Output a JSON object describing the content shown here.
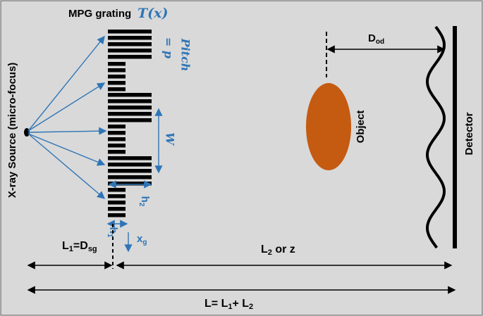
{
  "labels": {
    "grating_title": "MPG grating",
    "transmission": "T(x)",
    "pitch": "Pitch",
    "pitch_eq": "= p",
    "width": "W",
    "h2": {
      "main": "h",
      "sub": "2"
    },
    "h1": {
      "main": "h",
      "sub": "1"
    },
    "xg": {
      "main": "x",
      "sub": "g"
    },
    "source": "X-ray Source (micro-focus)",
    "object": "Object",
    "detector": "Detector",
    "dod": {
      "main": "D",
      "sub": "od"
    },
    "l1": {
      "main": "L",
      "sub": "1",
      "eq": "=D",
      "sub2": "sg"
    },
    "l2": {
      "main": "L",
      "sub": "2",
      "rest": " or z"
    },
    "total": {
      "main": "L= L",
      "sub": "1",
      "plus": "+ L",
      "sub2": "2"
    }
  }
}
